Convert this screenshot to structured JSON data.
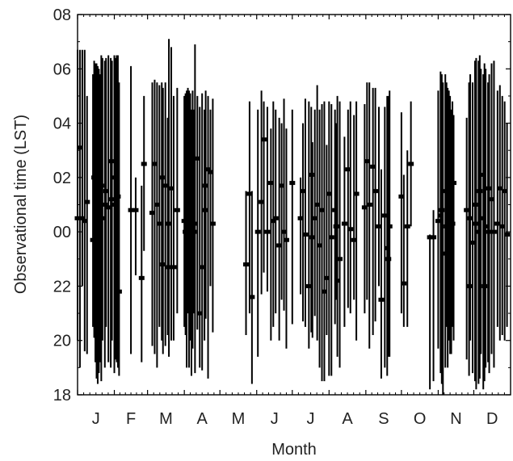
{
  "chart_data": {
    "type": "errorbar",
    "title": "",
    "xlabel": "Month",
    "ylabel": "Observational time (LST)",
    "x_tick_labels": [
      "J",
      "F",
      "M",
      "A",
      "M",
      "J",
      "J",
      "A",
      "S",
      "O",
      "N",
      "D"
    ],
    "y_tick_labels": [
      "08",
      "06",
      "04",
      "02",
      "00",
      "22",
      "20",
      "18"
    ],
    "x_range_days": [
      1,
      366
    ],
    "y_range_hours_rel": [
      -6,
      8
    ],
    "y_axis_note": "Times after midnight are relative to 00 LST; 18-22 LST are shown as negative offsets",
    "grid": false,
    "colors": {
      "marks": "#000000",
      "text": "#222222"
    },
    "series": [
      {
        "name": "",
        "points": [
          {
            "day": 1,
            "center": 0.5,
            "low": -4.0,
            "high": 6.7
          },
          {
            "day": 3,
            "center": 3.1,
            "low": -5.0,
            "high": 6.7
          },
          {
            "day": 5,
            "center": 0.5,
            "low": -2.0,
            "high": 6.7
          },
          {
            "day": 7,
            "center": 0.4,
            "low": -4.4,
            "high": 6.7
          },
          {
            "day": 9,
            "center": 1.1,
            "low": -4.5,
            "high": 5.0
          },
          {
            "day": 14,
            "center": -0.3,
            "low": -3.5,
            "high": 5.8
          },
          {
            "day": 15,
            "center": 2.0,
            "low": -3.9,
            "high": 6.3
          },
          {
            "day": 16,
            "center": 2.6,
            "low": -4.8,
            "high": 6.2
          },
          {
            "day": 17,
            "center": -1.0,
            "low": -5.4,
            "high": 6.2
          },
          {
            "day": 18,
            "center": 0.2,
            "low": -5.6,
            "high": 6.1
          },
          {
            "day": 19,
            "center": 2.0,
            "low": -5.2,
            "high": 6.0
          },
          {
            "day": 20,
            "center": -0.7,
            "low": -4.8,
            "high": 5.8
          },
          {
            "day": 21,
            "center": 1.7,
            "low": -5.5,
            "high": 6.5
          },
          {
            "day": 22,
            "center": 0.5,
            "low": -4.0,
            "high": 6.4
          },
          {
            "day": 24,
            "center": 1.0,
            "low": -5.0,
            "high": 6.3
          },
          {
            "day": 25,
            "center": 1.5,
            "low": -3.5,
            "high": 6.4
          },
          {
            "day": 27,
            "center": 0.9,
            "low": -4.8,
            "high": 6.5
          },
          {
            "day": 29,
            "center": 2.6,
            "low": -5.0,
            "high": 6.4
          },
          {
            "day": 30,
            "center": 1.2,
            "low": -4.0,
            "high": 6.3
          },
          {
            "day": 32,
            "center": 1.0,
            "low": -5.2,
            "high": 6.5
          },
          {
            "day": 33,
            "center": 2.0,
            "low": -4.7,
            "high": 6.4
          },
          {
            "day": 34,
            "center": -3.0,
            "low": -4.8,
            "high": 6.5
          },
          {
            "day": 35,
            "center": 1.3,
            "low": -5.0,
            "high": 6.5
          },
          {
            "day": 36,
            "center": -2.2,
            "low": -5.3,
            "high": 5.5
          },
          {
            "day": 46,
            "center": 0.8,
            "low": -4.5,
            "high": 6.1
          },
          {
            "day": 50,
            "center": 0.8,
            "low": -1.6,
            "high": 2.0
          },
          {
            "day": 55,
            "center": -1.7,
            "low": -4.8,
            "high": 1.7
          },
          {
            "day": 57,
            "center": 2.5,
            "low": -0.7,
            "high": 5.0
          },
          {
            "day": 64,
            "center": 0.7,
            "low": -4.2,
            "high": 5.5
          },
          {
            "day": 66,
            "center": 2.5,
            "low": -4.5,
            "high": 5.6
          },
          {
            "day": 68,
            "center": 1.0,
            "low": -5.0,
            "high": 5.5
          },
          {
            "day": 70,
            "center": 0.3,
            "low": -3.5,
            "high": 5.4
          },
          {
            "day": 72,
            "center": 2.0,
            "low": -4.0,
            "high": 5.5
          },
          {
            "day": 73,
            "center": -1.2,
            "low": -4.5,
            "high": 5.3
          },
          {
            "day": 75,
            "center": 1.7,
            "low": -4.2,
            "high": 5.5
          },
          {
            "day": 77,
            "center": 0.3,
            "low": -3.8,
            "high": 4.2
          },
          {
            "day": 78,
            "center": -1.3,
            "low": -4.6,
            "high": 7.1
          },
          {
            "day": 80,
            "center": 1.6,
            "low": -4.0,
            "high": 6.8
          },
          {
            "day": 82,
            "center": -1.3,
            "low": -4.0,
            "high": 5.0
          },
          {
            "day": 85,
            "center": 0.8,
            "low": -3.0,
            "high": 5.3
          },
          {
            "day": 91,
            "center": 0.4,
            "low": -3.5,
            "high": 5.0
          },
          {
            "day": 92,
            "center": 0.0,
            "low": -3.8,
            "high": 5.1
          },
          {
            "day": 93,
            "center": -0.5,
            "low": -5.0,
            "high": 5.2
          },
          {
            "day": 94,
            "center": 0.7,
            "low": -3.0,
            "high": 5.3
          },
          {
            "day": 95,
            "center": -1.0,
            "low": -5.0,
            "high": 5.2
          },
          {
            "day": 96,
            "center": 0.2,
            "low": -4.0,
            "high": 5.1
          },
          {
            "day": 97,
            "center": -2.3,
            "low": -5.3,
            "high": 4.5
          },
          {
            "day": 98,
            "center": 1.7,
            "low": -4.3,
            "high": 5.2
          },
          {
            "day": 99,
            "center": 0.0,
            "low": -3.0,
            "high": 4.5
          },
          {
            "day": 100,
            "center": 0.3,
            "low": -5.2,
            "high": 6.9
          },
          {
            "day": 102,
            "center": 2.7,
            "low": -3.6,
            "high": 5.0
          },
          {
            "day": 104,
            "center": -3.0,
            "low": -5.0,
            "high": 4.6
          },
          {
            "day": 106,
            "center": -1.3,
            "low": -5.1,
            "high": 5.1
          },
          {
            "day": 108,
            "center": 0.8,
            "low": -4.0,
            "high": 4.5
          },
          {
            "day": 109,
            "center": 1.7,
            "low": -3.2,
            "high": 5.2
          },
          {
            "day": 111,
            "center": 2.3,
            "low": -5.4,
            "high": 5.0
          },
          {
            "day": 113,
            "center": 2.2,
            "low": -2.0,
            "high": 4.5
          },
          {
            "day": 115,
            "center": 0.3,
            "low": -3.7,
            "high": 4.9
          },
          {
            "day": 143,
            "center": -1.2,
            "low": -3.8,
            "high": 1.5
          },
          {
            "day": 146,
            "center": 1.4,
            "low": -3.0,
            "high": 4.8
          },
          {
            "day": 148,
            "center": -2.4,
            "low": -5.6,
            "high": 1.5
          },
          {
            "day": 153,
            "center": 0.0,
            "low": -4.6,
            "high": 4.5
          },
          {
            "day": 156,
            "center": 1.1,
            "low": -2.3,
            "high": 5.2
          },
          {
            "day": 158,
            "center": 3.4,
            "low": -1.5,
            "high": 4.8
          },
          {
            "day": 161,
            "center": 0.0,
            "low": -2.2,
            "high": 4.6
          },
          {
            "day": 164,
            "center": 1.8,
            "low": -4.0,
            "high": 3.8
          },
          {
            "day": 166,
            "center": 0.4,
            "low": -3.5,
            "high": 4.8
          },
          {
            "day": 168,
            "center": 0.5,
            "low": -3.0,
            "high": 4.5
          },
          {
            "day": 171,
            "center": -0.5,
            "low": -4.0,
            "high": 4.2
          },
          {
            "day": 173,
            "center": 1.7,
            "low": -2.5,
            "high": 4.0
          },
          {
            "day": 175,
            "center": 0.0,
            "low": -2.9,
            "high": 4.9
          },
          {
            "day": 177,
            "center": -0.3,
            "low": -4.3,
            "high": 3.8
          },
          {
            "day": 182,
            "center": 1.8,
            "low": -3.4,
            "high": 4.5
          },
          {
            "day": 189,
            "center": 0.5,
            "low": -2.3,
            "high": 2.0
          },
          {
            "day": 191,
            "center": 1.5,
            "low": -3.3,
            "high": 4.0
          },
          {
            "day": 193,
            "center": -0.1,
            "low": -3.5,
            "high": 4.9
          },
          {
            "day": 196,
            "center": -2.0,
            "low": -4.3,
            "high": 4.8
          },
          {
            "day": 198,
            "center": 2.1,
            "low": -3.7,
            "high": 4.6
          },
          {
            "day": 199,
            "center": -0.2,
            "low": -3.9,
            "high": 3.3
          },
          {
            "day": 201,
            "center": 0.5,
            "low": -3.1,
            "high": 4.5
          },
          {
            "day": 203,
            "center": 1.0,
            "low": -4.0,
            "high": 5.4
          },
          {
            "day": 205,
            "center": -0.5,
            "low": -5.0,
            "high": 4.5
          },
          {
            "day": 207,
            "center": 0.8,
            "low": -5.5,
            "high": 4.7
          },
          {
            "day": 209,
            "center": -2.2,
            "low": -5.5,
            "high": 4.8
          },
          {
            "day": 211,
            "center": -1.7,
            "low": -3.8,
            "high": 3.2
          },
          {
            "day": 213,
            "center": 1.4,
            "low": -5.3,
            "high": 4.8
          },
          {
            "day": 215,
            "center": -0.2,
            "low": -5.3,
            "high": 4.7
          },
          {
            "day": 218,
            "center": 0.8,
            "low": -3.4,
            "high": 4.5
          },
          {
            "day": 219,
            "center": 0.2,
            "low": -2.5,
            "high": 4.0
          },
          {
            "day": 220,
            "center": -1.8,
            "low": -4.6,
            "high": 5.0
          },
          {
            "day": 222,
            "center": -1.0,
            "low": -5.0,
            "high": 4.8
          },
          {
            "day": 226,
            "center": 0.3,
            "low": -3.5,
            "high": 3.5
          },
          {
            "day": 229,
            "center": 2.3,
            "low": -2.8,
            "high": 4.5
          },
          {
            "day": 231,
            "center": 0.1,
            "low": -3.0,
            "high": 4.8
          },
          {
            "day": 234,
            "center": -0.3,
            "low": -2.5,
            "high": 4.3
          },
          {
            "day": 236,
            "center": 1.4,
            "low": -4.0,
            "high": 4.8
          },
          {
            "day": 243,
            "center": 0.9,
            "low": -3.0,
            "high": 4.7
          },
          {
            "day": 245,
            "center": 2.6,
            "low": -2.5,
            "high": 5.5
          },
          {
            "day": 247,
            "center": 1.0,
            "low": -4.3,
            "high": 5.5
          },
          {
            "day": 250,
            "center": 2.4,
            "low": -3.8,
            "high": 5.3
          },
          {
            "day": 252,
            "center": 1.5,
            "low": -3.3,
            "high": 5.3
          },
          {
            "day": 255,
            "center": 0.2,
            "low": -2.0,
            "high": 4.6
          },
          {
            "day": 257,
            "center": -2.5,
            "low": -5.4,
            "high": 2.3
          },
          {
            "day": 260,
            "center": 0.6,
            "low": -5.0,
            "high": 4.6
          },
          {
            "day": 262,
            "center": -0.6,
            "low": -5.3,
            "high": 5.0
          },
          {
            "day": 263,
            "center": -1.0,
            "low": -4.6,
            "high": 5.0
          },
          {
            "day": 264,
            "center": 0.2,
            "low": -4.6,
            "high": 5.2
          },
          {
            "day": 274,
            "center": 1.3,
            "low": -3.0,
            "high": 4.4
          },
          {
            "day": 276,
            "center": -1.9,
            "low": -3.5,
            "high": 2.1
          },
          {
            "day": 279,
            "center": 0.2,
            "low": -3.5,
            "high": 3.0
          },
          {
            "day": 282,
            "center": 2.5,
            "low": 0.2,
            "high": 4.8
          },
          {
            "day": 298,
            "center": -0.2,
            "low": -5.8,
            "high": -0.1
          },
          {
            "day": 301,
            "center": -0.2,
            "low": -5.5,
            "high": 0.8
          },
          {
            "day": 305,
            "center": 0.4,
            "low": -4.3,
            "high": 5.2
          },
          {
            "day": 307,
            "center": 0.6,
            "low": -5.2,
            "high": 5.9
          },
          {
            "day": 308,
            "center": 0.8,
            "low": -5.6,
            "high": 5.8
          },
          {
            "day": 309,
            "center": -0.8,
            "low": -6.0,
            "high": 5.5
          },
          {
            "day": 311,
            "center": 1.5,
            "low": -5.0,
            "high": 5.8
          },
          {
            "day": 312,
            "center": 0.2,
            "low": -3.5,
            "high": 5.5
          },
          {
            "day": 313,
            "center": -0.2,
            "low": -5.0,
            "high": 5.3
          },
          {
            "day": 314,
            "center": 1.2,
            "low": -4.0,
            "high": 5.2
          },
          {
            "day": 315,
            "center": 0.5,
            "low": -4.5,
            "high": 5.0
          },
          {
            "day": 316,
            "center": 0.8,
            "low": -4.5,
            "high": 4.5
          },
          {
            "day": 317,
            "center": 0.3,
            "low": -3.5,
            "high": 4.8
          },
          {
            "day": 318,
            "center": 1.8,
            "low": -4.0,
            "high": 4.3
          },
          {
            "day": 329,
            "center": 0.8,
            "low": -4.7,
            "high": 4.2
          },
          {
            "day": 331,
            "center": -2.0,
            "low": -5.3,
            "high": 5.5
          },
          {
            "day": 332,
            "center": 0.5,
            "low": -4.0,
            "high": 5.8
          },
          {
            "day": 334,
            "center": -0.4,
            "low": -5.2,
            "high": 5.5
          },
          {
            "day": 336,
            "center": 1.0,
            "low": -5.5,
            "high": 6.3
          },
          {
            "day": 337,
            "center": 0.3,
            "low": -5.8,
            "high": 6.4
          },
          {
            "day": 339,
            "center": 0.0,
            "low": -5.6,
            "high": 6.3
          },
          {
            "day": 340,
            "center": 1.5,
            "low": -5.4,
            "high": 6.5
          },
          {
            "day": 341,
            "center": 0.5,
            "low": -4.5,
            "high": 6.0
          },
          {
            "day": 343,
            "center": 2.1,
            "low": -5.8,
            "high": 5.8
          },
          {
            "day": 344,
            "center": -2.0,
            "low": -5.5,
            "high": 6.2
          },
          {
            "day": 345,
            "center": 0.2,
            "low": -5.0,
            "high": 6.0
          },
          {
            "day": 347,
            "center": 1.6,
            "low": -4.8,
            "high": 5.5
          },
          {
            "day": 348,
            "center": 0.0,
            "low": -5.2,
            "high": 5.8
          },
          {
            "day": 350,
            "center": 1.2,
            "low": -4.5,
            "high": 6.2
          },
          {
            "day": 352,
            "center": 0.0,
            "low": -5.0,
            "high": 6.3
          },
          {
            "day": 355,
            "center": 0.3,
            "low": -3.5,
            "high": 5.2
          },
          {
            "day": 357,
            "center": 1.6,
            "low": -4.0,
            "high": 5.4
          },
          {
            "day": 359,
            "center": 0.2,
            "low": -3.8,
            "high": 5.0
          },
          {
            "day": 361,
            "center": 1.5,
            "low": -4.0,
            "high": 4.8
          },
          {
            "day": 363,
            "center": -0.1,
            "low": -3.5,
            "high": 4.0
          }
        ]
      }
    ]
  }
}
